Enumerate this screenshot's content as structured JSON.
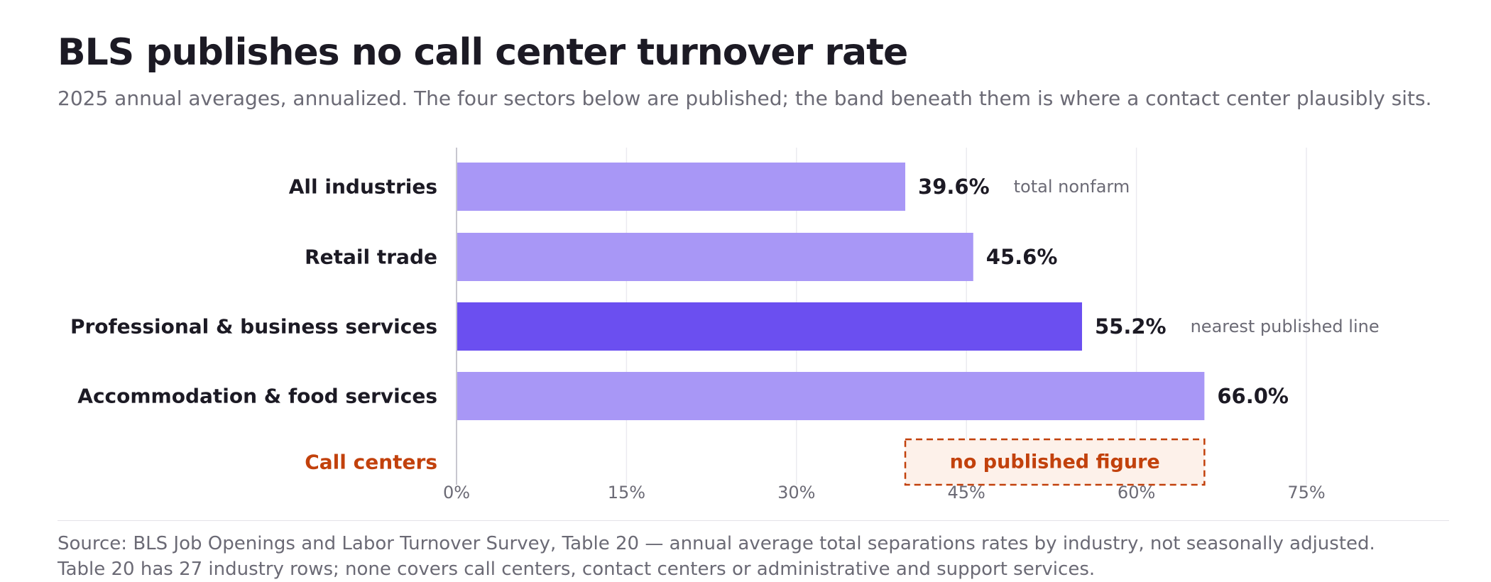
{
  "header": {
    "title": "BLS publishes no call center turnover rate",
    "subtitle": "2025 annual averages, annualized. The four sectors below are published; the band beneath them is where a contact center plausibly sits."
  },
  "colors": {
    "bar": "#a897f6",
    "bar_highlight": "#6b4ff0",
    "call_center": "#c2410c",
    "band_fill": "#fdf1ea",
    "grid": "#ebeaf0",
    "axis": "#c8c7cf",
    "label": "#1c1a24",
    "muted": "#6b6a75"
  },
  "chart_data": {
    "type": "bar",
    "orientation": "horizontal",
    "categories": [
      "All industries",
      "Retail trade",
      "Professional & business services",
      "Accommodation & food services"
    ],
    "values": [
      39.6,
      45.6,
      55.2,
      66.0
    ],
    "value_labels": [
      "39.6%",
      "45.6%",
      "55.2%",
      "66.0%"
    ],
    "annotations": [
      "total nonfarm",
      "",
      "nearest published line",
      ""
    ],
    "highlight_index": 2,
    "xlim": [
      0,
      75
    ],
    "x_ticks": [
      0,
      15,
      30,
      45,
      60,
      75
    ],
    "x_tick_labels": [
      "0%",
      "15%",
      "30%",
      "45%",
      "60%",
      "75%"
    ],
    "grid": true,
    "band": {
      "category": "Call centers",
      "range": [
        39.6,
        66.0
      ],
      "label": "no published figure"
    }
  },
  "footer": {
    "source_line1": "Source: BLS Job Openings and Labor Turnover Survey, Table 20 — annual average total separations rates by industry, not seasonally adjusted.",
    "source_line2": "Table 20 has 27 industry rows; none covers call centers, contact centers or administrative and support services."
  }
}
